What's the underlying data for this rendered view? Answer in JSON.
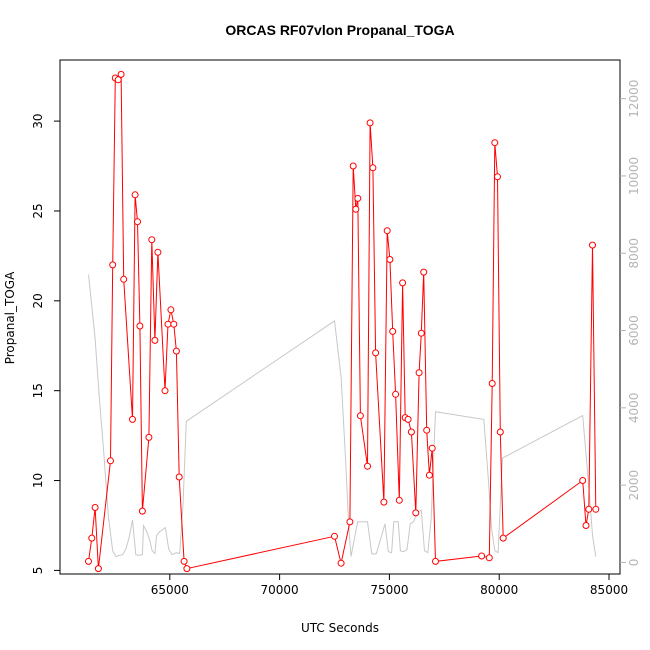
{
  "chart_data": {
    "type": "line",
    "title": "ORCAS RF07vlon Propanal_TOGA",
    "xlabel": "UTC Seconds",
    "ylabel": "Propanal_TOGA",
    "xlim": [
      60000,
      85500
    ],
    "ylim": [
      4.8,
      33.4
    ],
    "y2lim": [
      -300,
      13000
    ],
    "x_ticks": [
      65000,
      70000,
      75000,
      80000,
      85000
    ],
    "y_ticks": [
      5,
      10,
      15,
      20,
      25,
      30
    ],
    "y2_ticks": [
      0,
      2000,
      4000,
      6000,
      8000,
      10000,
      12000
    ],
    "grid": false,
    "series": [
      {
        "name": "",
        "color": "#ff0000",
        "marker": "open-circle",
        "points": [
          [
            61300,
            5.5
          ],
          [
            61450,
            6.8
          ],
          [
            61600,
            8.5
          ],
          [
            61750,
            5.1
          ],
          [
            62300,
            11.1
          ],
          [
            62400,
            22.0
          ],
          [
            62520,
            32.4
          ],
          [
            62650,
            32.3
          ],
          [
            62780,
            32.6
          ],
          [
            62900,
            21.2
          ],
          [
            63300,
            13.4
          ],
          [
            63420,
            25.9
          ],
          [
            63530,
            24.4
          ],
          [
            63640,
            18.6
          ],
          [
            63750,
            8.3
          ],
          [
            64050,
            12.4
          ],
          [
            64180,
            23.4
          ],
          [
            64320,
            17.8
          ],
          [
            64460,
            22.7
          ],
          [
            64780,
            15.0
          ],
          [
            64920,
            18.7
          ],
          [
            65050,
            19.5
          ],
          [
            65180,
            18.7
          ],
          [
            65300,
            17.2
          ],
          [
            65430,
            10.2
          ],
          [
            65650,
            5.5
          ],
          [
            65780,
            5.1
          ],
          [
            72500,
            6.9
          ],
          [
            72800,
            5.4
          ],
          [
            73200,
            7.7
          ],
          [
            73350,
            27.5
          ],
          [
            73470,
            25.1
          ],
          [
            73560,
            25.7
          ],
          [
            73680,
            13.6
          ],
          [
            74000,
            10.8
          ],
          [
            74120,
            29.9
          ],
          [
            74250,
            27.4
          ],
          [
            74370,
            17.1
          ],
          [
            74750,
            8.8
          ],
          [
            74900,
            23.9
          ],
          [
            75020,
            22.3
          ],
          [
            75150,
            18.3
          ],
          [
            75280,
            14.8
          ],
          [
            75450,
            8.9
          ],
          [
            75600,
            21.0
          ],
          [
            75720,
            13.5
          ],
          [
            75850,
            13.4
          ],
          [
            76000,
            12.7
          ],
          [
            76200,
            8.2
          ],
          [
            76350,
            16.0
          ],
          [
            76450,
            18.2
          ],
          [
            76560,
            21.6
          ],
          [
            76700,
            12.8
          ],
          [
            76820,
            10.3
          ],
          [
            76950,
            11.8
          ],
          [
            77100,
            5.5
          ],
          [
            79200,
            5.8
          ],
          [
            79550,
            5.7
          ],
          [
            79680,
            15.4
          ],
          [
            79800,
            28.8
          ],
          [
            79920,
            26.9
          ],
          [
            80050,
            12.7
          ],
          [
            80180,
            6.8
          ],
          [
            83800,
            10.0
          ],
          [
            83950,
            7.5
          ],
          [
            84080,
            8.4
          ],
          [
            84250,
            23.1
          ],
          [
            84400,
            8.4
          ]
        ]
      },
      {
        "name": "",
        "axis": "right",
        "color": "#c8c8c8",
        "points": [
          [
            61300,
            7450
          ],
          [
            61600,
            5800
          ],
          [
            61800,
            4200
          ],
          [
            62000,
            2800
          ],
          [
            62200,
            1200
          ],
          [
            62400,
            300
          ],
          [
            62550,
            150
          ],
          [
            62700,
            180
          ],
          [
            62850,
            200
          ],
          [
            63000,
            350
          ],
          [
            63150,
            650
          ],
          [
            63300,
            1100
          ],
          [
            63450,
            200
          ],
          [
            63600,
            180
          ],
          [
            63750,
            200
          ],
          [
            63800,
            950
          ],
          [
            63950,
            800
          ],
          [
            64100,
            550
          ],
          [
            64200,
            300
          ],
          [
            64320,
            230
          ],
          [
            64400,
            700
          ],
          [
            64550,
            800
          ],
          [
            64800,
            900
          ],
          [
            64950,
            350
          ],
          [
            65100,
            200
          ],
          [
            65300,
            250
          ],
          [
            65450,
            230
          ],
          [
            65600,
            1500
          ],
          [
            65750,
            3650
          ],
          [
            72500,
            6250
          ],
          [
            72800,
            4800
          ],
          [
            73000,
            2700
          ],
          [
            73150,
            900
          ],
          [
            73250,
            150
          ],
          [
            73400,
            600
          ],
          [
            73550,
            1050
          ],
          [
            73700,
            1050
          ],
          [
            74000,
            1050
          ],
          [
            74200,
            220
          ],
          [
            74400,
            220
          ],
          [
            74650,
            700
          ],
          [
            74800,
            1000
          ],
          [
            74950,
            280
          ],
          [
            75100,
            250
          ],
          [
            75200,
            1050
          ],
          [
            75400,
            1050
          ],
          [
            75500,
            300
          ],
          [
            75650,
            280
          ],
          [
            75800,
            330
          ],
          [
            75950,
            1000
          ],
          [
            76100,
            1050
          ],
          [
            76250,
            1300
          ],
          [
            76450,
            1350
          ],
          [
            76600,
            300
          ],
          [
            76750,
            250
          ],
          [
            76900,
            1100
          ],
          [
            77100,
            3900
          ],
          [
            79300,
            3700
          ],
          [
            79500,
            2200
          ],
          [
            79650,
            900
          ],
          [
            79800,
            300
          ],
          [
            79950,
            250
          ],
          [
            80150,
            2700
          ],
          [
            83800,
            3800
          ],
          [
            83950,
            2800
          ],
          [
            84100,
            1800
          ],
          [
            84250,
            700
          ],
          [
            84400,
            150
          ]
        ]
      }
    ]
  }
}
